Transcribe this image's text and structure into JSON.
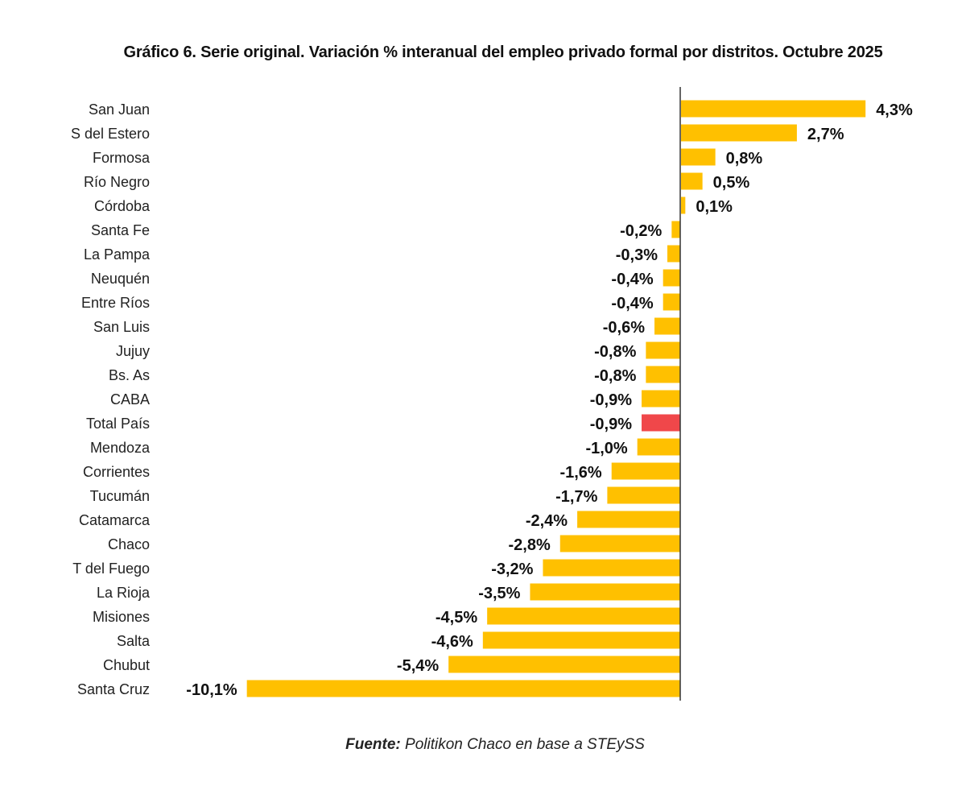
{
  "chart_data": {
    "type": "bar",
    "orientation": "horizontal",
    "title": "Gráfico 6. Serie original. Variación % interanual del empleo privado formal por distritos. Octubre 2025",
    "categories": [
      "San Juan",
      "S del Estero",
      "Formosa",
      "Río Negro",
      "Córdoba",
      "Santa Fe",
      "La Pampa",
      "Neuquén",
      "Entre Ríos",
      "San Luis",
      "Jujuy",
      "Bs. As",
      "CABA",
      "Total País",
      "Mendoza",
      "Corrientes",
      "Tucumán",
      "Catamarca",
      "Chaco",
      "T del Fuego",
      "La Rioja",
      "Misiones",
      "Salta",
      "Chubut",
      "Santa Cruz"
    ],
    "values": [
      4.3,
      2.7,
      0.8,
      0.5,
      0.1,
      -0.2,
      -0.3,
      -0.4,
      -0.4,
      -0.6,
      -0.8,
      -0.8,
      -0.9,
      -0.9,
      -1.0,
      -1.6,
      -1.7,
      -2.4,
      -2.8,
      -3.2,
      -3.5,
      -4.5,
      -4.6,
      -5.4,
      -10.1
    ],
    "data_labels": [
      "4,3%",
      "2,7%",
      "0,8%",
      "0,5%",
      "0,1%",
      "-0,2%",
      "-0,3%",
      "-0,4%",
      "-0,4%",
      "-0,6%",
      "-0,8%",
      "-0,8%",
      "-0,9%",
      "-0,9%",
      "-1,0%",
      "-1,6%",
      "-1,7%",
      "-2,4%",
      "-2,8%",
      "-3,2%",
      "-3,5%",
      "-4,5%",
      "-4,6%",
      "-5,4%",
      "-10,1%"
    ],
    "highlight_category": "Total País",
    "xlim": [
      -10.1,
      4.3
    ],
    "grid": false,
    "colors": {
      "bar": "#FFC000",
      "highlight": "#F0474A",
      "axis": "#333333"
    }
  },
  "source": {
    "label": "Fuente:",
    "text": " Politikon Chaco en base a STEySS"
  }
}
